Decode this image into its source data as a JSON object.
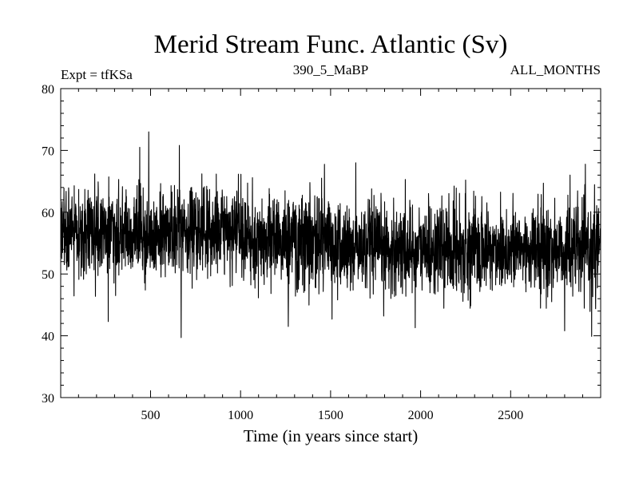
{
  "chart_data": {
    "type": "line",
    "title": "Merid Stream Func. Atlantic (Sv)",
    "info_left": "Expt = tfKSa",
    "info_center": "390_5_MaBP",
    "info_right": "ALL_MONTHS",
    "xlabel": "Time (in years since start)",
    "ylabel": "",
    "xlim": [
      1,
      3000
    ],
    "ylim": [
      30,
      80
    ],
    "xticks": [
      500,
      1000,
      1500,
      2000,
      2500
    ],
    "yticks": [
      30,
      40,
      50,
      60,
      70,
      80
    ],
    "grid": false,
    "series_color": "#000000",
    "series_summary": {
      "n_points": 3000,
      "mean_by_period": [
        {
          "x_from": 1,
          "x_to": 1000,
          "mean": 56.5
        },
        {
          "x_from": 1000,
          "x_to": 1500,
          "mean": 55.5
        },
        {
          "x_from": 1500,
          "x_to": 3000,
          "mean": 54
        }
      ],
      "min": 39.7,
      "max": 73
    },
    "extremes": [
      {
        "x": 490,
        "y": 73
      },
      {
        "x": 440,
        "y": 70.5
      },
      {
        "x": 660,
        "y": 70.8
      },
      {
        "x": 670,
        "y": 39.7
      },
      {
        "x": 265,
        "y": 42.3
      },
      {
        "x": 1265,
        "y": 41.5
      },
      {
        "x": 1970,
        "y": 41.3
      },
      {
        "x": 2800,
        "y": 40.8
      },
      {
        "x": 2950,
        "y": 39.9
      },
      {
        "x": 1640,
        "y": 68
      },
      {
        "x": 1450,
        "y": 65.5
      },
      {
        "x": 2250,
        "y": 65.2
      },
      {
        "x": 2830,
        "y": 66
      }
    ]
  }
}
